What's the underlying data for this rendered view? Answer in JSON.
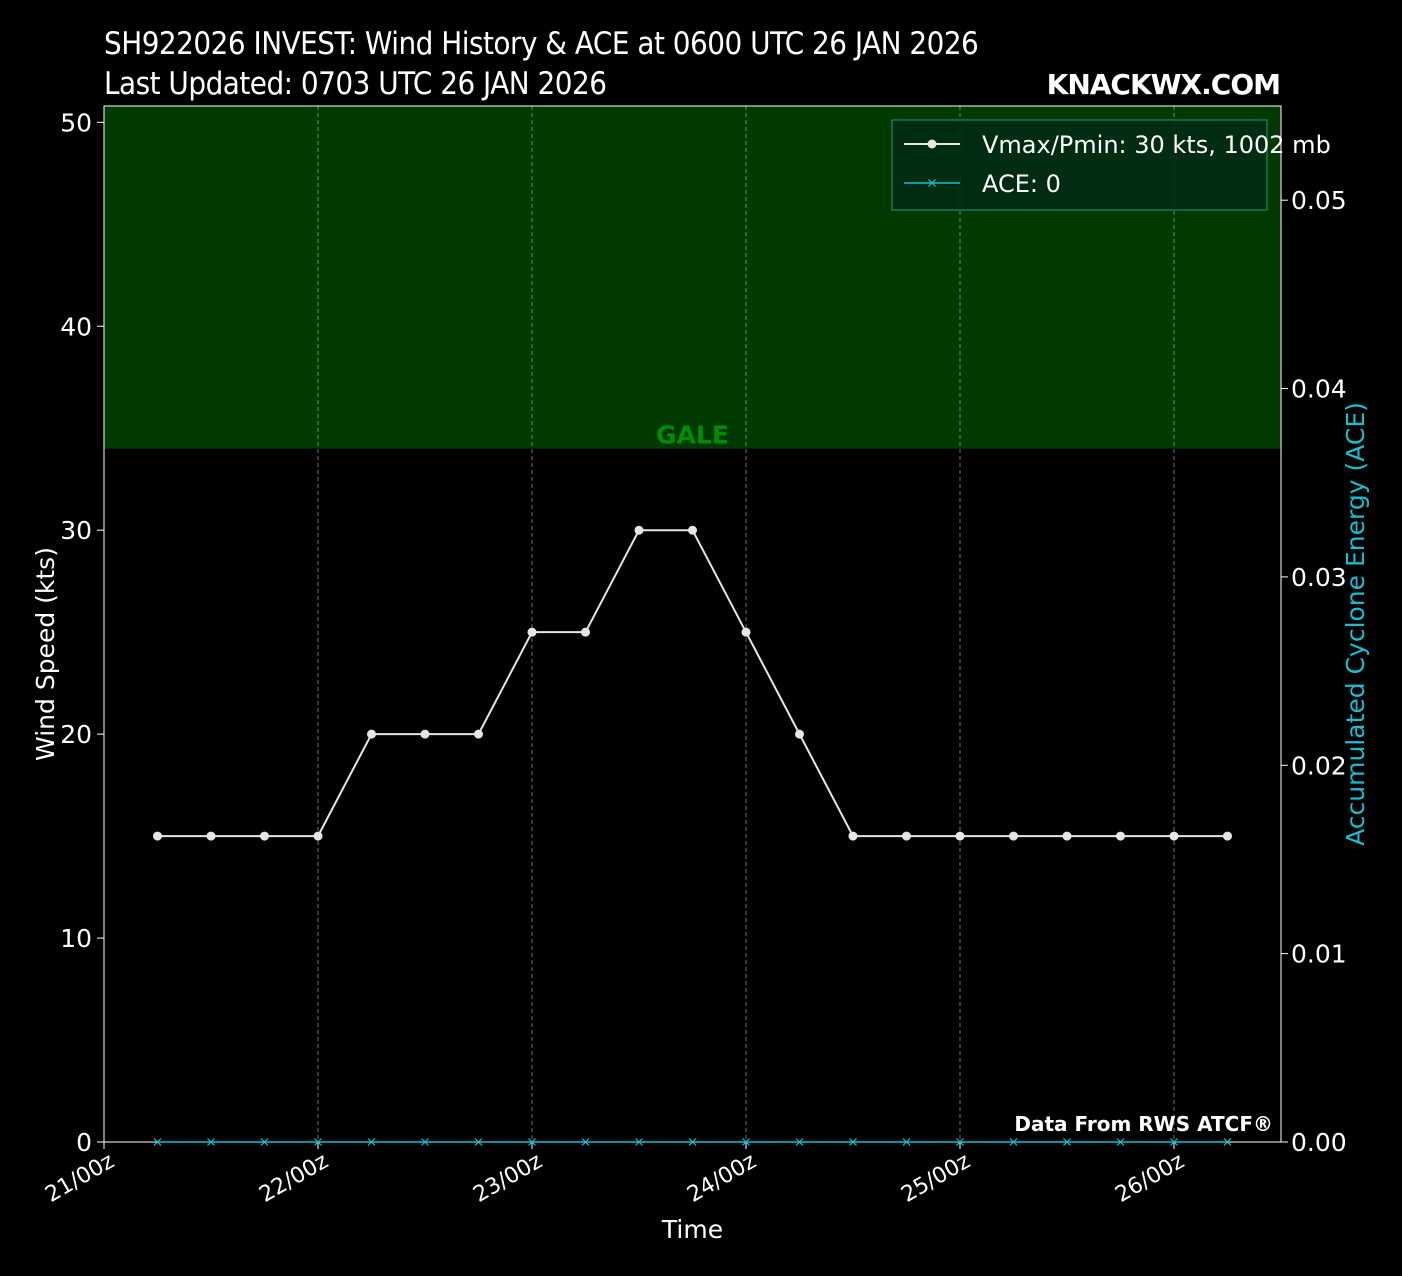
{
  "header": {
    "title": "SH922026 INVEST: Wind History & ACE at 0600 UTC 26 JAN 2026",
    "subtitle": "Last Updated: 0703 UTC 26 JAN 2026",
    "brand": "KNACKWX.COM"
  },
  "footer": {
    "credit": "Data From RWS ATCF®"
  },
  "colors": {
    "background": "#000000",
    "gale_band": "#003a00",
    "gale_label": "#008c00",
    "vmax_line": "#e6e6e6",
    "ace_line": "#17becf",
    "grid": "#bbbbbb"
  },
  "chart_data": {
    "type": "line",
    "xlabel": "Time",
    "ylabel": "Wind Speed (kts)",
    "ylabel_right": "Accumulated Cyclone Energy (ACE)",
    "ylim": [
      0,
      50.8
    ],
    "ylim_right": [
      0,
      0.055
    ],
    "xlim": [
      "2026-01-21 00:00",
      "2026-01-26 12:00"
    ],
    "x_ticks": [
      "21/00z",
      "22/00z",
      "23/00z",
      "24/00z",
      "25/00z",
      "26/00z"
    ],
    "y_ticks": [
      "0",
      "10",
      "20",
      "30",
      "40",
      "50"
    ],
    "y_ticks_right": [
      "0.00",
      "0.01",
      "0.02",
      "0.03",
      "0.04",
      "0.05"
    ],
    "grid": "vertical dashed at x ticks",
    "legend_placement": "top-right",
    "annotations": [
      {
        "label": "GALE",
        "ymin": 34
      }
    ],
    "x": [
      "2026-01-21 06:00",
      "2026-01-21 12:00",
      "2026-01-21 18:00",
      "2026-01-22 00:00",
      "2026-01-22 06:00",
      "2026-01-22 12:00",
      "2026-01-22 18:00",
      "2026-01-23 00:00",
      "2026-01-23 06:00",
      "2026-01-23 12:00",
      "2026-01-23 18:00",
      "2026-01-24 00:00",
      "2026-01-24 06:00",
      "2026-01-24 12:00",
      "2026-01-24 18:00",
      "2026-01-25 00:00",
      "2026-01-25 06:00",
      "2026-01-25 12:00",
      "2026-01-25 18:00",
      "2026-01-26 00:00",
      "2026-01-26 06:00"
    ],
    "series": [
      {
        "name": "Vmax/Pmin: 30 kts, 1002 mb",
        "axis": "left",
        "values": [
          15,
          15,
          15,
          15,
          20,
          20,
          20,
          25,
          25,
          30,
          30,
          25,
          20,
          15,
          15,
          15,
          15,
          15,
          15,
          15,
          15
        ]
      },
      {
        "name": "ACE: 0",
        "axis": "right",
        "values": [
          0,
          0,
          0,
          0,
          0,
          0,
          0,
          0,
          0,
          0,
          0,
          0,
          0,
          0,
          0,
          0,
          0,
          0,
          0,
          0,
          0
        ]
      }
    ]
  }
}
